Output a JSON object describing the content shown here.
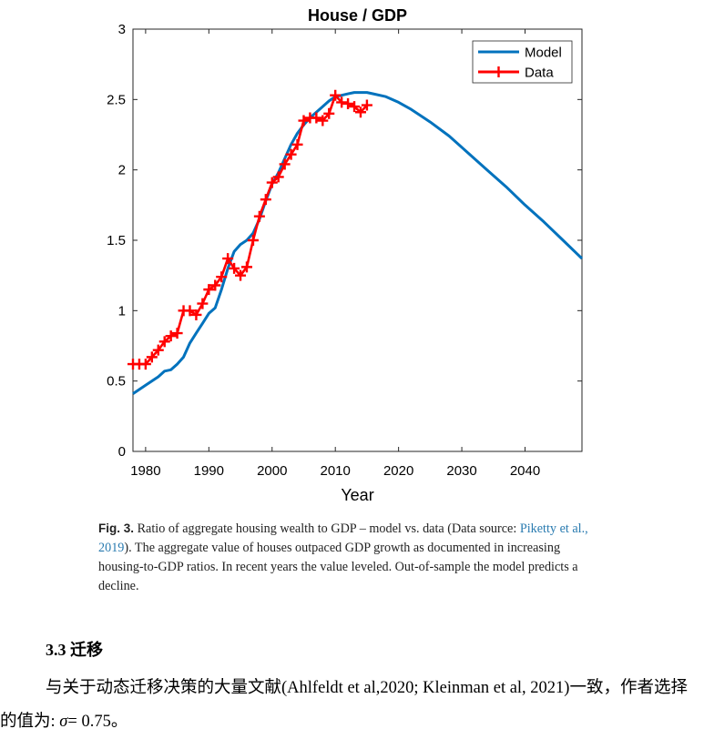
{
  "chart_data": {
    "type": "line",
    "title": "House / GDP",
    "xlabel": "Year",
    "ylabel": "",
    "xlim": [
      1978,
      2049
    ],
    "ylim": [
      0,
      3
    ],
    "xticks": [
      1980,
      1990,
      2000,
      2010,
      2020,
      2030,
      2040
    ],
    "yticks": [
      0,
      0.5,
      1,
      1.5,
      2,
      2.5,
      3
    ],
    "ytick_labels": [
      "0",
      "0.5",
      "1",
      "1.5",
      "2",
      "2.5",
      "3"
    ],
    "legend_position": "top-right",
    "grid": false,
    "series": [
      {
        "name": "Model",
        "color": "#0072BD",
        "marker": "none",
        "x": [
          1978,
          1980,
          1982,
          1983,
          1984,
          1985,
          1986,
          1987,
          1988,
          1989,
          1990,
          1991,
          1992,
          1993,
          1994,
          1995,
          1996,
          1997,
          1998,
          1999,
          2000,
          2001,
          2002,
          2003,
          2004,
          2005,
          2006,
          2007,
          2008,
          2009,
          2010,
          2011,
          2012,
          2013,
          2014,
          2015,
          2016,
          2018,
          2020,
          2022,
          2025,
          2028,
          2031,
          2034,
          2037,
          2040,
          2043,
          2046,
          2049
        ],
        "y": [
          0.41,
          0.47,
          0.53,
          0.57,
          0.58,
          0.62,
          0.67,
          0.77,
          0.84,
          0.91,
          0.98,
          1.02,
          1.15,
          1.3,
          1.42,
          1.47,
          1.5,
          1.55,
          1.65,
          1.78,
          1.9,
          1.98,
          2.08,
          2.18,
          2.26,
          2.32,
          2.37,
          2.41,
          2.45,
          2.49,
          2.52,
          2.53,
          2.54,
          2.55,
          2.55,
          2.55,
          2.54,
          2.52,
          2.48,
          2.43,
          2.34,
          2.24,
          2.12,
          2.0,
          1.88,
          1.75,
          1.63,
          1.5,
          1.37
        ]
      },
      {
        "name": "Data",
        "color": "#FF0000",
        "marker": "+",
        "x": [
          1978,
          1979,
          1980,
          1981,
          1982,
          1983,
          1984,
          1985,
          1986,
          1987,
          1988,
          1989,
          1990,
          1991,
          1992,
          1993,
          1994,
          1995,
          1996,
          1997,
          1998,
          1999,
          2000,
          2001,
          2002,
          2003,
          2004,
          2005,
          2006,
          2007,
          2008,
          2009,
          2010,
          2011,
          2012,
          2013,
          2014,
          2015
        ],
        "y": [
          0.62,
          0.62,
          0.62,
          0.67,
          0.72,
          0.78,
          0.82,
          0.84,
          1.0,
          1.0,
          0.97,
          1.05,
          1.15,
          1.18,
          1.24,
          1.37,
          1.3,
          1.25,
          1.31,
          1.5,
          1.67,
          1.79,
          1.91,
          1.95,
          2.04,
          2.11,
          2.18,
          2.35,
          2.37,
          2.37,
          2.35,
          2.4,
          2.53,
          2.48,
          2.47,
          2.45,
          2.41,
          2.46
        ]
      }
    ]
  },
  "caption": {
    "label": "Fig. 3.",
    "text_1": "Ratio of aggregate housing wealth to GDP – model vs. data (Data source: ",
    "source_link": "Piketty et al., 2019",
    "text_2": "). The aggregate value of houses outpaced GDP growth as documented in increasing housing-to-GDP ratios. In recent years the value leveled. Out-of-sample the model predicts a decline."
  },
  "section": {
    "number": "3.3",
    "title": "迁移"
  },
  "paragraph": {
    "text": "与关于动态迁移决策的大量文献(Ahlfeldt et al,2020; Kleinman et al, 2021)一致，作者选择的值为: ",
    "symbol": "σ",
    "value": "= 0.75。"
  }
}
